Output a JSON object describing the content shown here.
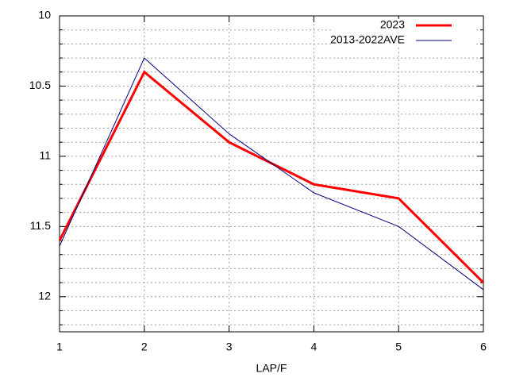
{
  "chart_data": {
    "type": "line",
    "xlabel": "LAP/F",
    "x": [
      1,
      2,
      3,
      4,
      5,
      6
    ],
    "xlim": [
      1,
      6
    ],
    "xticks": [
      1,
      2,
      3,
      4,
      5,
      6
    ],
    "ylim": [
      10,
      12.25
    ],
    "y_reversed": true,
    "yticks": [
      10,
      10.5,
      11,
      11.5,
      12
    ],
    "yminorticks": [
      10.1,
      10.2,
      10.3,
      10.4,
      10.6,
      10.7,
      10.8,
      10.9,
      11.1,
      11.2,
      11.3,
      11.4,
      11.6,
      11.7,
      11.8,
      11.9,
      12.1,
      12.2
    ],
    "grid": true,
    "legend": "top-right",
    "series": [
      {
        "name": "2023",
        "color": "#ff0000",
        "width": 3,
        "values": [
          11.6,
          10.4,
          10.9,
          11.2,
          11.3,
          11.9
        ]
      },
      {
        "name": "2013-2022AVE",
        "color": "#000080",
        "width": 1,
        "values": [
          11.64,
          10.3,
          10.84,
          11.26,
          11.5,
          11.95
        ]
      }
    ]
  }
}
